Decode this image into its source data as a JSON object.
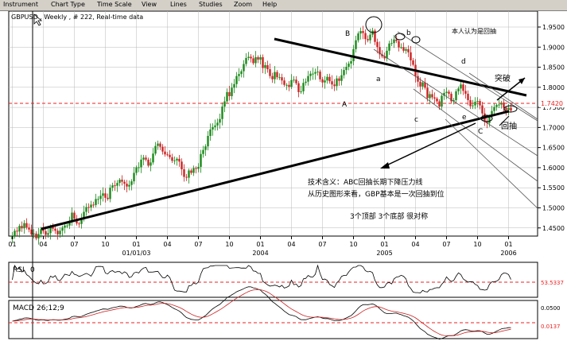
{
  "menu": [
    "Instrument",
    "Chart Type",
    "Time Scale",
    "View",
    "Lines",
    "Studies",
    "Zoom",
    "Help"
  ],
  "chart_title": "GBPUSD , Weekly , # 222, Real-time data",
  "price_axis": [
    "1.9500",
    "1.9000",
    "1.8500",
    "1.8000",
    "1.7500",
    "1.7000",
    "1.6500",
    "1.6000",
    "1.5500",
    "1.5000",
    "1.4500"
  ],
  "current_price": "1.7420",
  "time_axis": [
    {
      "label": "01",
      "week": 0
    },
    {
      "label": "04",
      "week": 13
    },
    {
      "label": "07",
      "week": 26
    },
    {
      "label": "10",
      "week": 39
    },
    {
      "label": "01",
      "week": 52
    },
    {
      "label": "04",
      "week": 65
    },
    {
      "label": "07",
      "week": 78
    },
    {
      "label": "10",
      "week": 91
    },
    {
      "label": "01",
      "week": 104
    },
    {
      "label": "04",
      "week": 117
    },
    {
      "label": "07",
      "week": 130
    },
    {
      "label": "10",
      "week": 143
    },
    {
      "label": "01",
      "week": 156
    },
    {
      "label": "04",
      "week": 169
    },
    {
      "label": "07",
      "week": 182
    },
    {
      "label": "10",
      "week": 195
    },
    {
      "label": "01",
      "week": 208
    }
  ],
  "year_labels": [
    {
      "label": "01/01/03",
      "week": 52
    },
    {
      "label": "2004",
      "week": 104
    },
    {
      "label": "2005",
      "week": 156
    },
    {
      "label": "2006",
      "week": 208
    }
  ],
  "annotations": {
    "A": "A",
    "B": "B",
    "C": "C",
    "a": "a",
    "b": "b",
    "c": "c",
    "d": "d",
    "e": "e",
    "pullback_note": "本人认为是回抽",
    "breakout": "突破",
    "pullback": "回抽",
    "tech1": "技术含义：ABC回抽长期下降压力线",
    "tech2": "从历史图形来看，GBP基本是一次回抽到位",
    "tech3": "3个顶部  3个底部  很对称"
  },
  "rsi": {
    "label": "RSI",
    "param": "0",
    "level": "53.5337",
    "range": [
      0,
      100
    ]
  },
  "macd": {
    "label": "MACD",
    "param": "26;12;9",
    "levels": [
      "0.0500",
      "0.0137"
    ]
  },
  "colors": {
    "up": "#1a8a1a",
    "down": "#cc2222",
    "line": "#000000",
    "dash": "#ee2222",
    "grid": "#b8b8b8"
  },
  "chart_data": {
    "type": "candlestick",
    "x_unit": "weeks since first visible bar",
    "ylim": [
      1.4,
      1.98
    ],
    "close": [
      1.43,
      1.443,
      1.441,
      1.455,
      1.449,
      1.462,
      1.451,
      1.446,
      1.434,
      1.436,
      1.424,
      1.435,
      1.447,
      1.442,
      1.433,
      1.437,
      1.452,
      1.448,
      1.443,
      1.434,
      1.443,
      1.451,
      1.456,
      1.456,
      1.467,
      1.488,
      1.473,
      1.461,
      1.46,
      1.474,
      1.49,
      1.502,
      1.501,
      1.508,
      1.507,
      1.522,
      1.522,
      1.53,
      1.536,
      1.525,
      1.522,
      1.55,
      1.556,
      1.555,
      1.562,
      1.57,
      1.565,
      1.56,
      1.553,
      1.557,
      1.566,
      1.587,
      1.601,
      1.601,
      1.62,
      1.625,
      1.62,
      1.605,
      1.613,
      1.635,
      1.654,
      1.66,
      1.652,
      1.64,
      1.633,
      1.632,
      1.626,
      1.617,
      1.618,
      1.622,
      1.615,
      1.596,
      1.577,
      1.575,
      1.593,
      1.587,
      1.599,
      1.597,
      1.602,
      1.634,
      1.644,
      1.653,
      1.679,
      1.695,
      1.701,
      1.705,
      1.712,
      1.721,
      1.752,
      1.765,
      1.788,
      1.778,
      1.799,
      1.808,
      1.828,
      1.833,
      1.84,
      1.858,
      1.873,
      1.876,
      1.872,
      1.86,
      1.875,
      1.869,
      1.875,
      1.848,
      1.855,
      1.845,
      1.828,
      1.82,
      1.838,
      1.825,
      1.825,
      1.817,
      1.806,
      1.806,
      1.801,
      1.818,
      1.819,
      1.81,
      1.788,
      1.79,
      1.811,
      1.814,
      1.828,
      1.834,
      1.834,
      1.838,
      1.839,
      1.82,
      1.812,
      1.817,
      1.826,
      1.815,
      1.807,
      1.803,
      1.822,
      1.816,
      1.83,
      1.843,
      1.851,
      1.859,
      1.865,
      1.895,
      1.917,
      1.934,
      1.94,
      1.935,
      1.92,
      1.917,
      1.931,
      1.941,
      1.913,
      1.9,
      1.882,
      1.877,
      1.872,
      1.891,
      1.909,
      1.91,
      1.919,
      1.915,
      1.899,
      1.9,
      1.891,
      1.895,
      1.887,
      1.867,
      1.856,
      1.828,
      1.814,
      1.802,
      1.812,
      1.799,
      1.773,
      1.783,
      1.775,
      1.772,
      1.765,
      1.752,
      1.779,
      1.786,
      1.789,
      1.784,
      1.765,
      1.768,
      1.79,
      1.797,
      1.807,
      1.791,
      1.784,
      1.768,
      1.753,
      1.755,
      1.764,
      1.766,
      1.755,
      1.735,
      1.716,
      1.711,
      1.727,
      1.741,
      1.751,
      1.756,
      1.757,
      1.762,
      1.749,
      1.743,
      1.749,
      1.742
    ]
  }
}
